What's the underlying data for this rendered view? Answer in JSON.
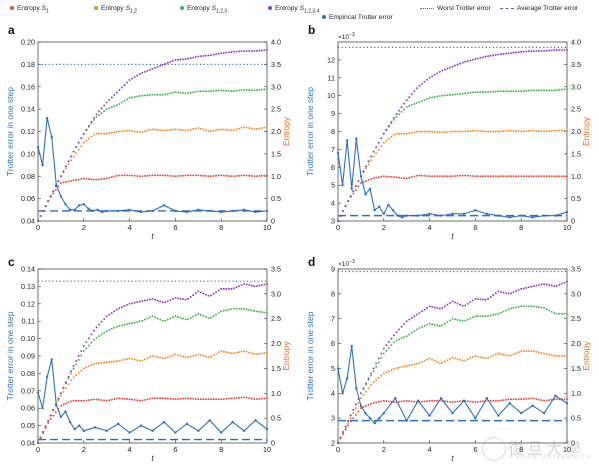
{
  "legend": {
    "entropy_s1": {
      "prefix": "Entropy ",
      "main": "S",
      "sub": "1",
      "color": "#e0483e"
    },
    "entropy_s12": {
      "prefix": "Entropy ",
      "main": "S",
      "sub": "1,2",
      "color": "#f08a24"
    },
    "entropy_s123": {
      "prefix": "Entropy ",
      "main": "S",
      "sub": "1,2,3",
      "color": "#43b14b"
    },
    "entropy_s1234": {
      "prefix": "Entropy ",
      "main": "S",
      "sub": "1,2,3,4",
      "color": "#8e3bc0"
    },
    "empirical": {
      "label": "Empirical Trotter error",
      "color": "#2f6fb5"
    },
    "worst": {
      "label": "Worst Trotter error",
      "color": "#2f6fb5"
    },
    "average": {
      "label": "Average Trotter error",
      "color": "#2f6fb5"
    }
  },
  "colors": {
    "trotter_axis": "#2f6fb5",
    "entropy_axis": "#e06a2c",
    "text": "#222222"
  },
  "chart_data": [
    {
      "panel": "a",
      "type": "line",
      "xlabel": "t",
      "ylabel_left": "Trotter error in one step",
      "ylabel_right": "Entropy",
      "xlim": [
        0,
        10
      ],
      "ylim_left": [
        0.04,
        0.2
      ],
      "ylim_right": [
        0,
        4.0
      ],
      "left_exponent": "",
      "xticks": [
        0,
        2,
        4,
        6,
        8,
        10
      ],
      "yticks_left": [
        0.04,
        0.06,
        0.08,
        0.1,
        0.12,
        0.14,
        0.16,
        0.18,
        0.2
      ],
      "yticks_left_labels": [
        "0.04",
        "0.06",
        "0.08",
        "0.10",
        "0.12",
        "0.14",
        "0.16",
        "0.18",
        "0.20"
      ],
      "yticks_right": [
        0,
        0.5,
        1.0,
        1.5,
        2.0,
        2.5,
        3.0,
        3.5,
        4.0
      ],
      "yticks_right_labels": [
        "0",
        "0.5",
        "1.0",
        "1.5",
        "2.0",
        "2.5",
        "3.0",
        "3.5",
        "4.0"
      ],
      "worst_trotter_error": 0.18,
      "average_trotter_error": 0.049,
      "empirical": {
        "x": [
          0,
          0.2,
          0.4,
          0.6,
          0.8,
          1.0,
          1.2,
          1.4,
          1.6,
          1.8,
          2.0,
          2.2,
          2.4,
          2.6,
          2.8,
          3.0,
          3.5,
          4.0,
          4.5,
          5.0,
          5.5,
          6.0,
          6.5,
          7.0,
          7.5,
          8.0,
          8.5,
          9.0,
          9.5,
          10.0
        ],
        "y": [
          0.106,
          0.09,
          0.132,
          0.115,
          0.072,
          0.062,
          0.055,
          0.05,
          0.05,
          0.054,
          0.055,
          0.051,
          0.049,
          0.05,
          0.048,
          0.049,
          0.049,
          0.05,
          0.048,
          0.049,
          0.054,
          0.049,
          0.048,
          0.05,
          0.049,
          0.048,
          0.049,
          0.05,
          0.048,
          0.049
        ]
      },
      "entropy": {
        "x": [
          0,
          0.5,
          1.0,
          1.5,
          2.0,
          2.5,
          3.0,
          3.5,
          4.0,
          4.5,
          5.0,
          5.5,
          6.0,
          6.5,
          7.0,
          7.5,
          8.0,
          8.5,
          9.0,
          9.5,
          10.0
        ],
        "s1": [
          0,
          0.5,
          0.85,
          0.9,
          0.95,
          0.92,
          0.95,
          1.02,
          1.02,
          1.0,
          1.02,
          1.02,
          1.0,
          1.02,
          1.02,
          1.0,
          1.02,
          1.0,
          1.02,
          1.0,
          1.02
        ],
        "s12": [
          0,
          0.5,
          1.0,
          1.4,
          1.75,
          1.95,
          1.95,
          2.0,
          2.02,
          1.98,
          2.05,
          2.02,
          2.05,
          2.02,
          2.08,
          2.0,
          2.05,
          2.02,
          2.1,
          2.05,
          2.1
        ],
        "s123": [
          0,
          0.5,
          1.0,
          1.5,
          1.95,
          2.3,
          2.5,
          2.6,
          2.75,
          2.8,
          2.82,
          2.82,
          2.88,
          2.85,
          2.9,
          2.9,
          2.92,
          2.9,
          2.93,
          2.92,
          2.95
        ],
        "s1234": [
          0,
          0.5,
          1.0,
          1.5,
          1.95,
          2.35,
          2.65,
          2.9,
          3.15,
          3.3,
          3.4,
          3.5,
          3.6,
          3.62,
          3.68,
          3.7,
          3.75,
          3.78,
          3.8,
          3.8,
          3.82
        ]
      }
    },
    {
      "panel": "b",
      "type": "line",
      "xlabel": "t",
      "ylabel_left": "Trotter error in one step",
      "ylabel_right": "Entropy",
      "xlim": [
        0,
        10
      ],
      "ylim_left": [
        3,
        13
      ],
      "ylim_right": [
        0,
        4.0
      ],
      "left_exponent": "×10",
      "left_exponent_power": "−3",
      "xticks": [
        0,
        2,
        4,
        6,
        8,
        10
      ],
      "yticks_left": [
        3,
        4,
        5,
        6,
        7,
        8,
        9,
        10,
        11,
        12
      ],
      "yticks_left_labels": [
        "3",
        "4",
        "5",
        "6",
        "7",
        "8",
        "9",
        "10",
        "11",
        "12"
      ],
      "yticks_right": [
        0,
        0.5,
        1.0,
        1.5,
        2.0,
        2.5,
        3.0,
        3.5,
        4.0
      ],
      "yticks_right_labels": [
        "0",
        "0.5",
        "1.0",
        "1.5",
        "2.0",
        "2.5",
        "3.0",
        "3.5",
        "4.0"
      ],
      "worst_trotter_error": 12.7,
      "average_trotter_error": 3.3,
      "empirical": {
        "x": [
          0,
          0.2,
          0.4,
          0.6,
          0.8,
          1.0,
          1.2,
          1.4,
          1.6,
          1.8,
          2.0,
          2.2,
          2.4,
          2.6,
          2.8,
          3.0,
          3.5,
          4.0,
          4.5,
          5.0,
          5.5,
          6.0,
          6.5,
          7.0,
          7.5,
          8.0,
          8.5,
          9.0,
          9.5,
          10.0
        ],
        "y": [
          6.8,
          5.0,
          7.5,
          4.8,
          7.6,
          5.5,
          4.5,
          4.8,
          3.6,
          3.8,
          3.4,
          3.9,
          3.6,
          3.3,
          3.2,
          3.3,
          3.3,
          3.4,
          3.3,
          3.4,
          3.4,
          3.6,
          3.4,
          3.3,
          3.2,
          3.3,
          3.2,
          3.3,
          3.3,
          3.5
        ]
      },
      "entropy": {
        "x": [
          0,
          0.5,
          1.0,
          1.5,
          2.0,
          2.5,
          3.0,
          3.5,
          4.0,
          4.5,
          5.0,
          5.5,
          6.0,
          6.5,
          7.0,
          7.5,
          8.0,
          8.5,
          9.0,
          9.5,
          10.0
        ],
        "s1": [
          0,
          0.5,
          0.85,
          0.95,
          1.0,
          0.98,
          0.95,
          1.02,
          1.0,
          1.0,
          1.0,
          1.02,
          1.0,
          1.0,
          1.0,
          1.0,
          1.0,
          1.0,
          1.0,
          1.0,
          1.0
        ],
        "s12": [
          0,
          0.5,
          1.0,
          1.4,
          1.75,
          1.95,
          1.95,
          2.0,
          2.0,
          1.98,
          2.0,
          2.0,
          2.02,
          2.0,
          2.0,
          2.02,
          2.0,
          2.02,
          2.0,
          2.02,
          2.02
        ],
        "s123": [
          0,
          0.5,
          1.0,
          1.5,
          1.95,
          2.3,
          2.55,
          2.65,
          2.75,
          2.8,
          2.82,
          2.85,
          2.88,
          2.88,
          2.9,
          2.9,
          2.9,
          2.92,
          2.92,
          2.92,
          2.95
        ],
        "s1234": [
          0,
          0.5,
          1.0,
          1.5,
          1.95,
          2.35,
          2.7,
          3.0,
          3.2,
          3.35,
          3.45,
          3.55,
          3.62,
          3.68,
          3.72,
          3.75,
          3.78,
          3.8,
          3.8,
          3.82,
          3.82
        ]
      }
    },
    {
      "panel": "c",
      "type": "line",
      "xlabel": "t",
      "ylabel_left": "Trotter error in one step",
      "ylabel_right": "Entropy",
      "xlim": [
        0,
        10
      ],
      "ylim_left": [
        0.04,
        0.14
      ],
      "ylim_right": [
        0,
        3.5
      ],
      "left_exponent": "",
      "xticks": [
        0,
        2,
        4,
        6,
        8,
        10
      ],
      "yticks_left": [
        0.04,
        0.05,
        0.06,
        0.07,
        0.08,
        0.09,
        0.1,
        0.11,
        0.12,
        0.13,
        0.14
      ],
      "yticks_left_labels": [
        "0.04",
        "0.05",
        "0.06",
        "0.07",
        "0.08",
        "0.09",
        "0.10",
        "0.11",
        "0.12",
        "0.13",
        "0.14"
      ],
      "yticks_right": [
        0,
        0.5,
        1.0,
        1.5,
        2.0,
        2.5,
        3.0,
        3.5
      ],
      "yticks_right_labels": [
        "0",
        "0.5",
        "1.0",
        "1.5",
        "2.0",
        "2.5",
        "3.0",
        "3.5"
      ],
      "worst_trotter_error": 0.133,
      "average_trotter_error": 0.042,
      "empirical": {
        "x": [
          0,
          0.2,
          0.4,
          0.6,
          0.8,
          1.0,
          1.2,
          1.4,
          1.6,
          1.8,
          2.0,
          2.5,
          3.0,
          3.5,
          4.0,
          4.5,
          5.0,
          5.5,
          6.0,
          6.5,
          7.0,
          7.5,
          8.0,
          8.5,
          9.0,
          9.5,
          10.0
        ],
        "y": [
          0.069,
          0.06,
          0.078,
          0.088,
          0.062,
          0.055,
          0.058,
          0.052,
          0.048,
          0.05,
          0.047,
          0.049,
          0.047,
          0.051,
          0.046,
          0.05,
          0.047,
          0.052,
          0.046,
          0.051,
          0.047,
          0.053,
          0.046,
          0.052,
          0.047,
          0.053,
          0.048
        ]
      },
      "entropy": {
        "x": [
          0,
          0.5,
          1.0,
          1.5,
          2.0,
          2.5,
          3.0,
          3.5,
          4.0,
          4.5,
          5.0,
          5.5,
          6.0,
          6.5,
          7.0,
          7.5,
          8.0,
          8.5,
          9.0,
          9.5,
          10.0
        ],
        "s1": [
          0,
          0.45,
          0.75,
          0.85,
          0.85,
          0.88,
          0.85,
          0.9,
          0.88,
          0.85,
          0.9,
          0.9,
          0.88,
          0.9,
          0.88,
          0.88,
          0.88,
          0.9,
          0.92,
          0.88,
          0.9
        ],
        "s12": [
          0,
          0.5,
          0.95,
          1.3,
          1.5,
          1.6,
          1.62,
          1.65,
          1.7,
          1.65,
          1.75,
          1.7,
          1.78,
          1.72,
          1.78,
          1.72,
          1.85,
          1.8,
          1.85,
          1.78,
          1.82
        ],
        "s123": [
          0,
          0.5,
          1.0,
          1.45,
          1.85,
          2.1,
          2.25,
          2.35,
          2.4,
          2.45,
          2.55,
          2.45,
          2.55,
          2.48,
          2.6,
          2.5,
          2.65,
          2.7,
          2.7,
          2.65,
          2.62
        ],
        "s1234": [
          0,
          0.5,
          1.0,
          1.5,
          1.95,
          2.3,
          2.55,
          2.7,
          2.8,
          2.85,
          2.9,
          2.82,
          2.92,
          2.88,
          3.05,
          2.95,
          3.1,
          3.1,
          3.2,
          3.15,
          3.2
        ]
      }
    },
    {
      "panel": "d",
      "type": "line",
      "xlabel": "t",
      "ylabel_left": "Trotter error in one step",
      "ylabel_right": "Entropy",
      "xlim": [
        0,
        10
      ],
      "ylim_left": [
        2,
        9
      ],
      "ylim_right": [
        0,
        3.5
      ],
      "left_exponent": "×10",
      "left_exponent_power": "−3",
      "xticks": [
        0,
        2,
        4,
        6,
        8,
        10
      ],
      "yticks_left": [
        2,
        3,
        4,
        5,
        6,
        7,
        8,
        9
      ],
      "yticks_left_labels": [
        "2",
        "3",
        "4",
        "5",
        "6",
        "7",
        "8",
        "9"
      ],
      "yticks_right": [
        0,
        0.5,
        1.0,
        1.5,
        2.0,
        2.5,
        3.0,
        3.5
      ],
      "yticks_right_labels": [
        "0",
        "0.5",
        "1.0",
        "1.5",
        "2.0",
        "2.5",
        "3.0",
        "3.5"
      ],
      "worst_trotter_error": 8.9,
      "average_trotter_error": 2.9,
      "empirical": {
        "x": [
          0,
          0.2,
          0.4,
          0.6,
          0.8,
          1.0,
          1.2,
          1.4,
          1.6,
          1.8,
          2.0,
          2.5,
          3.0,
          3.5,
          4.0,
          4.5,
          5.0,
          5.5,
          6.0,
          6.5,
          7.0,
          7.5,
          8.0,
          8.5,
          9.0,
          9.5,
          10.0
        ],
        "y": [
          5.0,
          4.0,
          4.6,
          5.9,
          4.2,
          3.5,
          3.2,
          3.0,
          2.8,
          3.0,
          3.2,
          3.8,
          2.9,
          3.7,
          3.1,
          3.8,
          3.2,
          3.7,
          3.0,
          3.8,
          3.1,
          3.6,
          3.2,
          3.5,
          3.2,
          3.9,
          3.6
        ]
      },
      "entropy": {
        "x": [
          0,
          0.5,
          1.0,
          1.5,
          2.0,
          2.5,
          3.0,
          3.5,
          4.0,
          4.5,
          5.0,
          5.5,
          6.0,
          6.5,
          7.0,
          7.5,
          8.0,
          8.5,
          9.0,
          9.5,
          10.0
        ],
        "s1": [
          0,
          0.4,
          0.7,
          0.8,
          0.85,
          0.82,
          0.85,
          0.82,
          0.85,
          0.85,
          0.82,
          0.85,
          0.82,
          0.85,
          0.85,
          0.88,
          0.88,
          0.9,
          0.85,
          0.88,
          0.88
        ],
        "s12": [
          0,
          0.45,
          0.9,
          1.2,
          1.4,
          1.5,
          1.55,
          1.6,
          1.7,
          1.6,
          1.72,
          1.65,
          1.75,
          1.7,
          1.8,
          1.75,
          1.85,
          1.85,
          1.8,
          1.75,
          1.75
        ],
        "s123": [
          0,
          0.5,
          1.0,
          1.4,
          1.8,
          2.05,
          2.15,
          2.3,
          2.4,
          2.35,
          2.5,
          2.45,
          2.55,
          2.55,
          2.6,
          2.7,
          2.75,
          2.75,
          2.72,
          2.6,
          2.6
        ],
        "s1234": [
          0,
          0.5,
          1.0,
          1.45,
          1.9,
          2.2,
          2.45,
          2.6,
          2.75,
          2.7,
          2.85,
          2.75,
          2.9,
          2.88,
          3.05,
          3.0,
          3.1,
          3.15,
          3.2,
          3.15,
          3.25
        ]
      }
    }
  ],
  "watermark": {
    "main": "復旦大學",
    "sub": "FUDAN UNIVERSITY"
  }
}
